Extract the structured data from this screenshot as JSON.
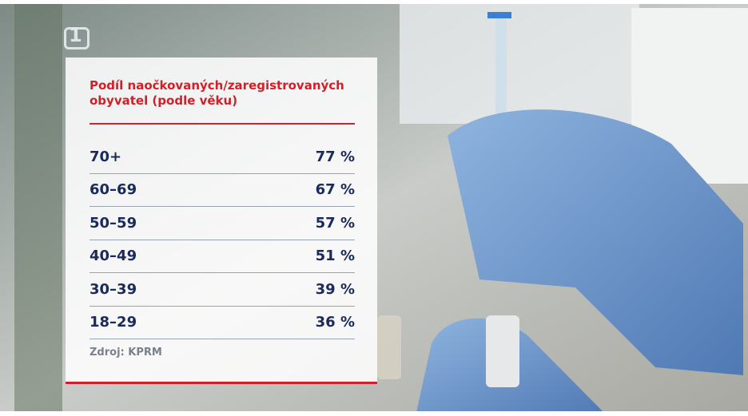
{
  "logo": "1",
  "title": "Podíl naočkovaných/zaregistrovaných obyvatel (podle věku)",
  "table": {
    "rows": [
      [
        "70+",
        "77 %"
      ],
      [
        "60–69",
        "67 %"
      ],
      [
        "50–59",
        "57 %"
      ],
      [
        "40–49",
        "51 %"
      ],
      [
        "30–39",
        "39 %"
      ],
      [
        "18–29",
        "36 %"
      ]
    ]
  },
  "source": "Zdroj: KPRM"
}
